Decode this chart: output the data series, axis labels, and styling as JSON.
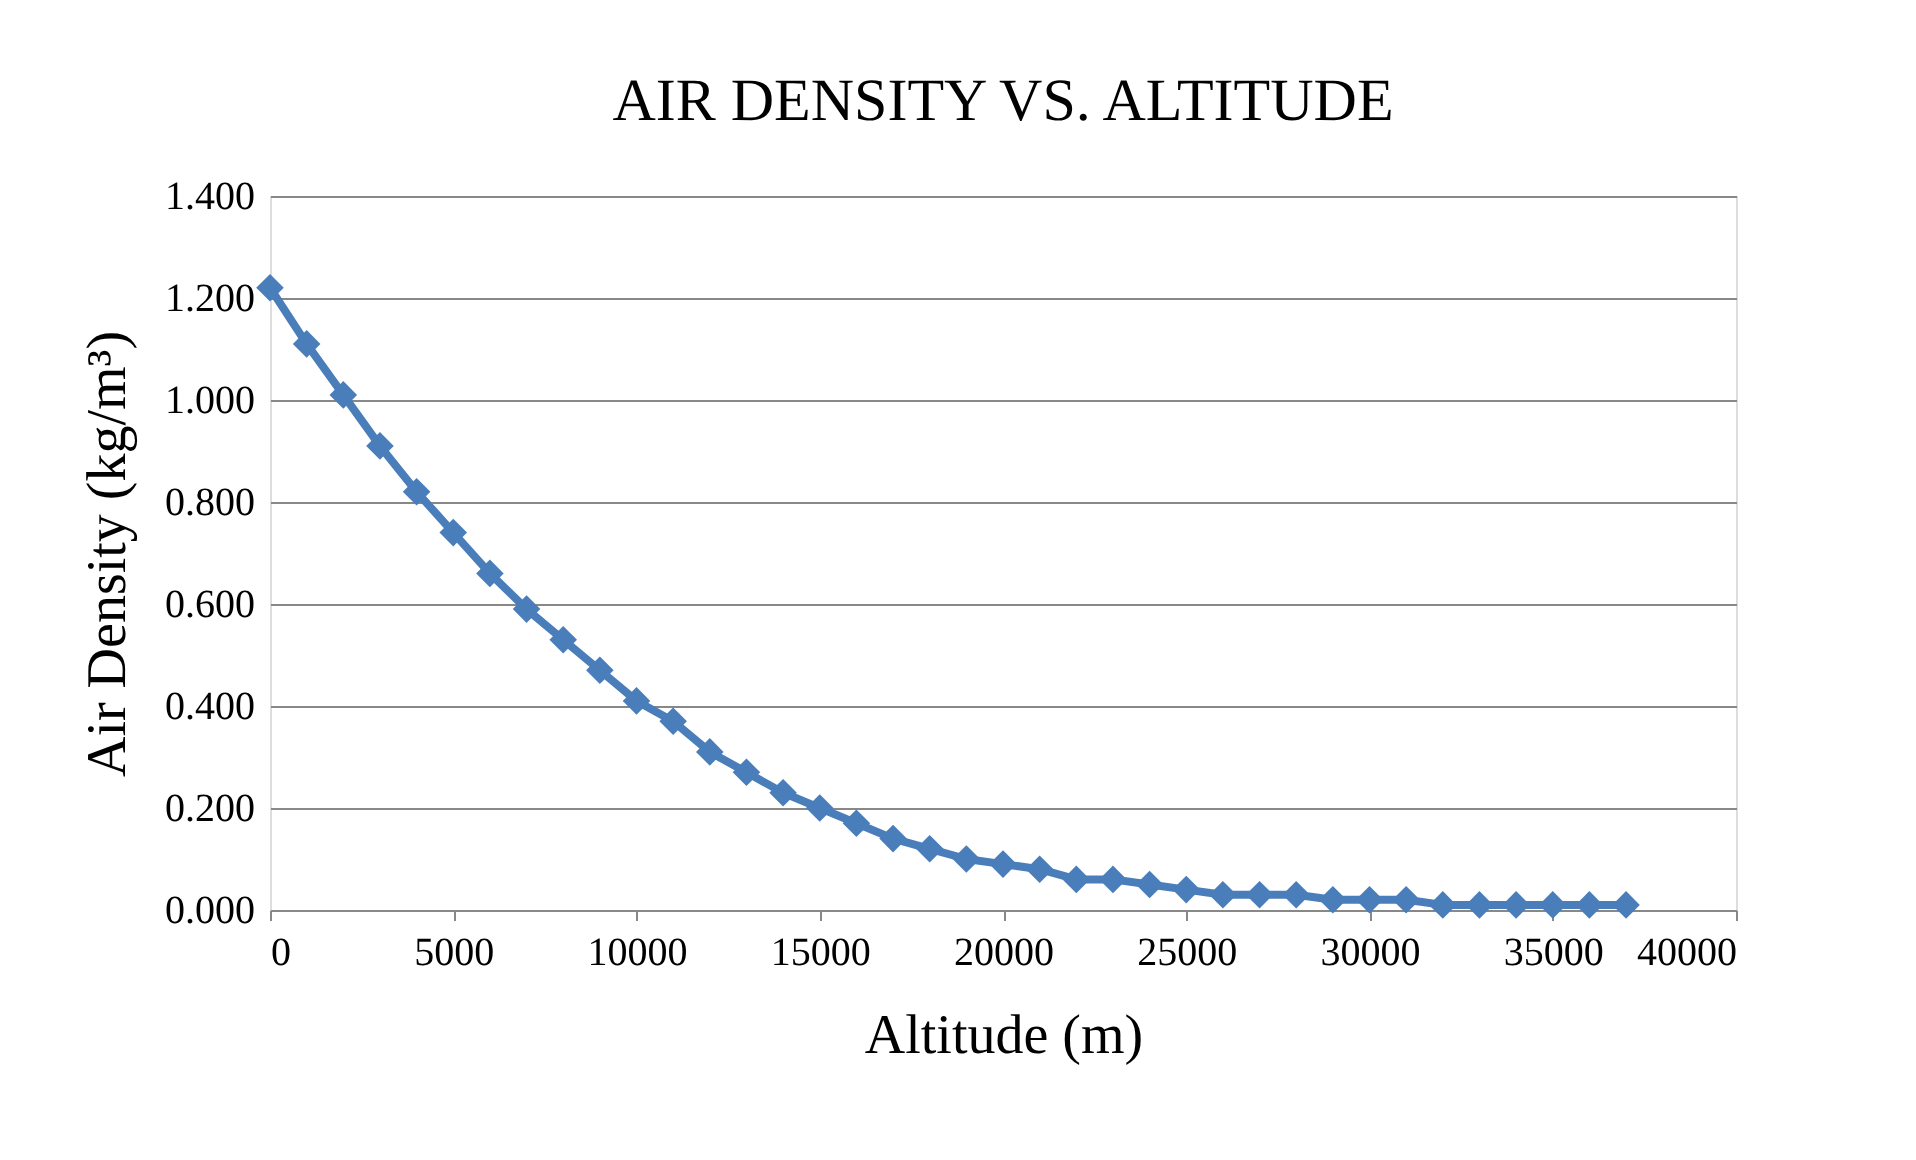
{
  "chart_data": {
    "type": "line",
    "title": "AIR DENSITY VS. ALTITUDE",
    "xlabel": "Altitude (m)",
    "ylabel": "Air Density (kg/m³)",
    "x": [
      0,
      1000,
      2000,
      3000,
      4000,
      5000,
      6000,
      7000,
      8000,
      9000,
      10000,
      11000,
      12000,
      13000,
      14000,
      15000,
      16000,
      17000,
      18000,
      19000,
      20000,
      21000,
      22000,
      23000,
      24000,
      25000,
      26000,
      27000,
      28000,
      29000,
      30000,
      31000,
      32000,
      33000,
      34000,
      35000,
      36000,
      37000
    ],
    "series": [
      {
        "color": "#4a7ebb",
        "values": [
          1.22,
          1.11,
          1.01,
          0.91,
          0.82,
          0.74,
          0.66,
          0.59,
          0.53,
          0.47,
          0.41,
          0.37,
          0.31,
          0.27,
          0.23,
          0.2,
          0.17,
          0.14,
          0.12,
          0.1,
          0.09,
          0.08,
          0.06,
          0.06,
          0.05,
          0.04,
          0.03,
          0.03,
          0.03,
          0.02,
          0.02,
          0.02,
          0.01,
          0.01,
          0.01,
          0.01,
          0.01,
          0.01
        ]
      }
    ],
    "xlim": [
      0,
      40000
    ],
    "xticks": [
      0,
      5000,
      10000,
      15000,
      20000,
      25000,
      30000,
      35000,
      40000
    ],
    "ylim": [
      0,
      1.4
    ],
    "yticks": [
      {
        "value": 0,
        "label": "0.000"
      },
      {
        "value": 0.2,
        "label": "0.200"
      },
      {
        "value": 0.4,
        "label": "0.400"
      },
      {
        "value": 0.6,
        "label": "0.600"
      },
      {
        "value": 0.8,
        "label": "0.800"
      },
      {
        "value": 1.0,
        "label": "1.000"
      },
      {
        "value": 1.2,
        "label": "1.200"
      },
      {
        "value": 1.4,
        "label": "1.400"
      }
    ],
    "grid": "y",
    "marker": "diamond",
    "line_style": "solid"
  }
}
